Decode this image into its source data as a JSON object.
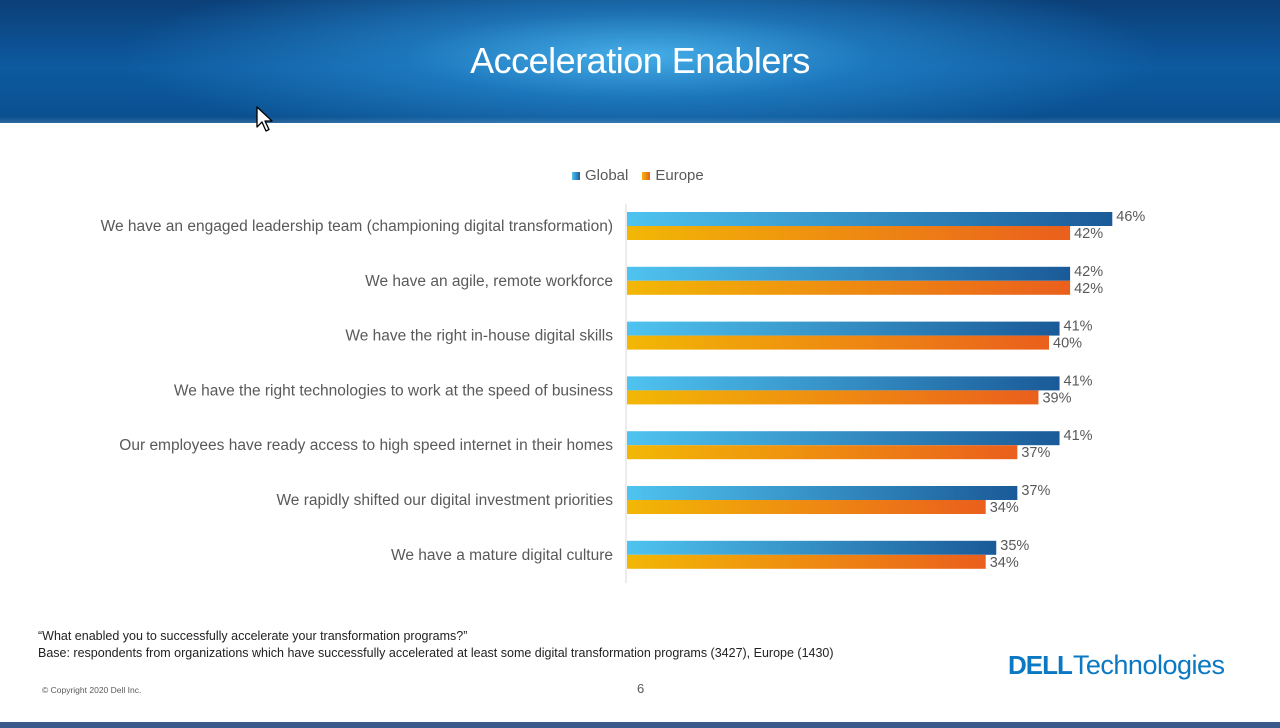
{
  "slide": {
    "title": "Acceleration Enablers",
    "footnote_question": "“What enabled you to successfully accelerate your transformation programs?”",
    "footnote_base": "Base: respondents from organizations which have successfully accelerated at least some digital transformation programs (3427), Europe (1430)",
    "copyright": "© Copyright 2020 Dell Inc.",
    "page_number": "6",
    "logo_dell": "DELL",
    "logo_tech": "Technologies"
  },
  "colors": {
    "global_start": "#4fc3f0",
    "global_end": "#1a5a98",
    "europe_start": "#f2b705",
    "europe_end": "#ea5f1d",
    "label": "#595959"
  },
  "chart_data": {
    "type": "bar",
    "orientation": "horizontal",
    "title": "",
    "xlabel": "",
    "ylabel": "",
    "xlim": [
      0,
      46
    ],
    "grid": false,
    "legend_position": "top",
    "categories": [
      "We have an engaged leadership team (championing digital transformation)",
      "We have an agile, remote workforce",
      "We have the right in-house digital skills",
      "We have the right technologies to work at the speed of business",
      "Our employees have ready access to high speed internet in their homes",
      "We rapidly shifted our digital investment priorities",
      "We have a mature digital culture"
    ],
    "series": [
      {
        "name": "Global",
        "values": [
          46,
          42,
          41,
          41,
          41,
          37,
          35
        ]
      },
      {
        "name": "Europe",
        "values": [
          42,
          42,
          40,
          39,
          37,
          34,
          34
        ]
      }
    ],
    "value_suffix": "%"
  }
}
